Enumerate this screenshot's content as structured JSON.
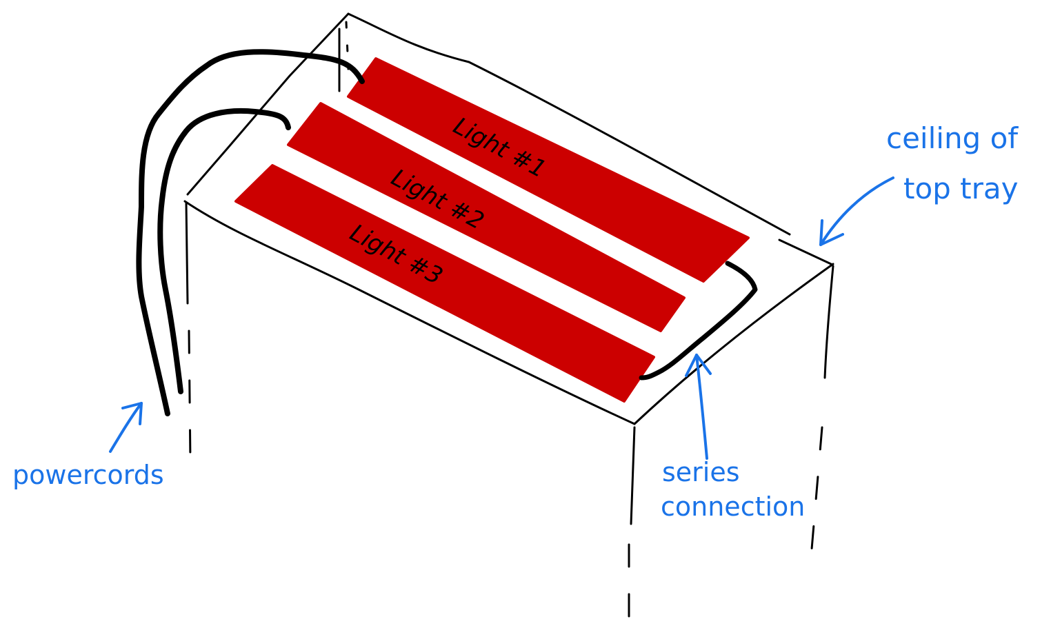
{
  "labels": {
    "light_1": "Light #1",
    "light_2": "Light #2",
    "light_3": "Light #3",
    "ceiling_line1": "ceiling of",
    "ceiling_line2": "top tray",
    "series_line1": "series",
    "series_line2": "connection",
    "powercords": "powercords"
  },
  "colors": {
    "light_fill": "#cc0000",
    "annotation": "#1a73e8",
    "ink": "#000000"
  }
}
